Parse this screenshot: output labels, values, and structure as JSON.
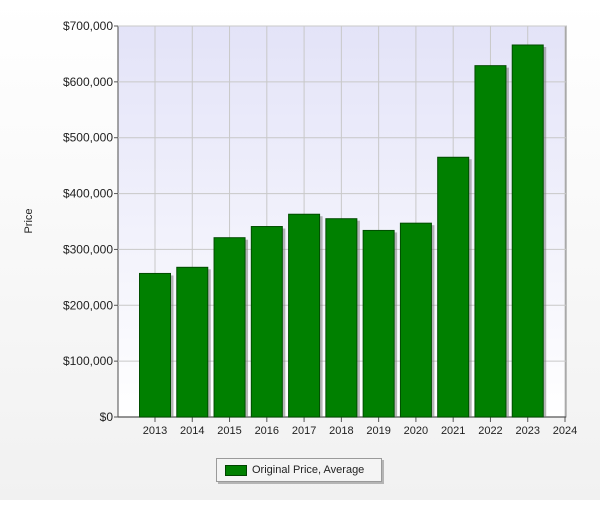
{
  "chart_data": {
    "type": "bar",
    "title": "",
    "xlabel": "",
    "ylabel": "Price",
    "categories": [
      "2013",
      "2014",
      "2015",
      "2016",
      "2017",
      "2018",
      "2019",
      "2020",
      "2021",
      "2022",
      "2023"
    ],
    "x_ticks": [
      "2013",
      "2014",
      "2015",
      "2016",
      "2017",
      "2018",
      "2019",
      "2020",
      "2021",
      "2022",
      "2023",
      "2024"
    ],
    "series": [
      {
        "name": "Original Price, Average",
        "values": [
          257000,
          268000,
          321000,
          341000,
          363000,
          355000,
          334000,
          347000,
          465000,
          629000,
          666000
        ]
      }
    ],
    "ylim": [
      0,
      700000
    ],
    "y_ticks": [
      0,
      100000,
      200000,
      300000,
      400000,
      500000,
      600000,
      700000
    ],
    "y_tick_labels": [
      "$0",
      "$100,000",
      "$200,000",
      "$300,000",
      "$400,000",
      "$500,000",
      "$600,000",
      "$700,000"
    ],
    "grid": true,
    "legend_position": "bottom-center",
    "colors": {
      "bar": "#008000",
      "bar_edge": "#004d00",
      "plot_bg_top": "#e3e3f8",
      "plot_bg_bottom": "#ffffff",
      "grid": "#c8c8c8"
    }
  }
}
